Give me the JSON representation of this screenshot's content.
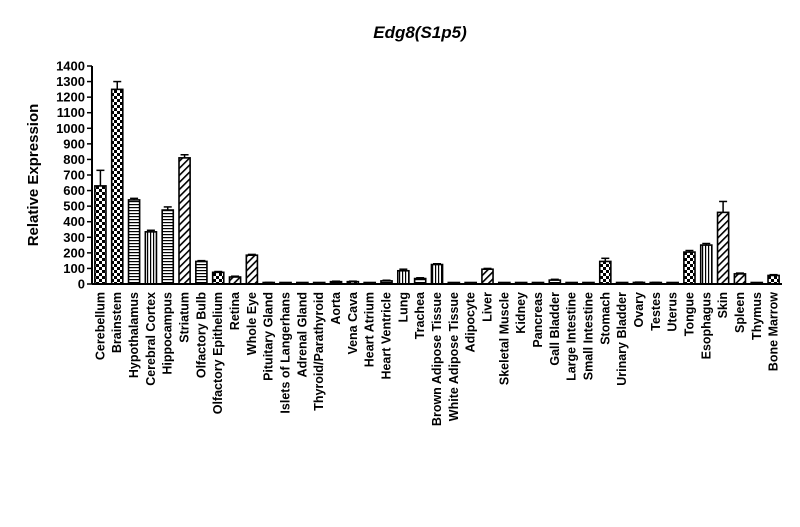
{
  "chart_data": {
    "type": "bar",
    "title": "Edg8(S1p5)",
    "xlabel": "",
    "ylabel": "Relative Expression",
    "ylim": [
      0,
      1400
    ],
    "yticks": [
      0,
      100,
      200,
      300,
      400,
      500,
      600,
      700,
      800,
      900,
      1000,
      1100,
      1200,
      1300,
      1400
    ],
    "grid": false,
    "categories": [
      "Cerebellum",
      "Brainstem",
      "Hypothalamus",
      "Cerebral Cortex",
      "Hippocampus",
      "Striatum",
      "Olfactory Bulb",
      "Olfactory Epithelium",
      "Retina",
      "Whole Eye",
      "Pituitary Gland",
      "Islets of Langerhans",
      "Adrenal Gland",
      "Thyroid/Parathyroid",
      "Aorta",
      "Vena Cava",
      "Heart Atrium",
      "Heart Ventricle",
      "Lung",
      "Trachea",
      "Brown Adipose Tissue",
      "White Adipose Tissue",
      "Adipocyte",
      "Liver",
      "Skeletal Muscle",
      "Kidney",
      "Pancreas",
      "Gall Bladder",
      "Large Intestine",
      "Small Intestine",
      "Stomach",
      "Urinary Bladder",
      "Ovary",
      "Testes",
      "Uterus",
      "Tongue",
      "Esophagus",
      "Skin",
      "Spleen",
      "Thymus",
      "Bone Marrow"
    ],
    "values": [
      630,
      1250,
      540,
      335,
      475,
      810,
      145,
      75,
      45,
      185,
      8,
      5,
      5,
      6,
      15,
      15,
      5,
      20,
      85,
      35,
      125,
      3,
      3,
      95,
      5,
      3,
      5,
      25,
      5,
      5,
      145,
      3,
      10,
      8,
      3,
      205,
      250,
      460,
      65,
      3,
      55
    ],
    "errors": [
      100,
      50,
      10,
      10,
      20,
      20,
      5,
      5,
      5,
      5,
      2,
      2,
      2,
      2,
      3,
      3,
      2,
      4,
      10,
      5,
      5,
      1,
      1,
      5,
      2,
      1,
      2,
      5,
      2,
      2,
      20,
      1,
      2,
      2,
      1,
      10,
      10,
      70,
      5,
      1,
      5
    ],
    "patterns": [
      "check",
      "check",
      "hstripe",
      "vstripe",
      "hstripe",
      "diag",
      "hstripe",
      "check",
      "diag",
      "diag",
      "vstripe",
      "vstripe",
      "hstripe",
      "diag",
      "hstripe",
      "check",
      "vstripe",
      "hstripe",
      "vstripe",
      "hstripe",
      "vstripe",
      "hstripe",
      "hstripe",
      "diag",
      "hstripe",
      "hstripe",
      "hstripe",
      "hstripe",
      "hstripe",
      "hstripe",
      "check",
      "hstripe",
      "hstripe",
      "hstripe",
      "diag",
      "check",
      "vstripe",
      "diag",
      "diag",
      "hstripe",
      "check"
    ]
  }
}
